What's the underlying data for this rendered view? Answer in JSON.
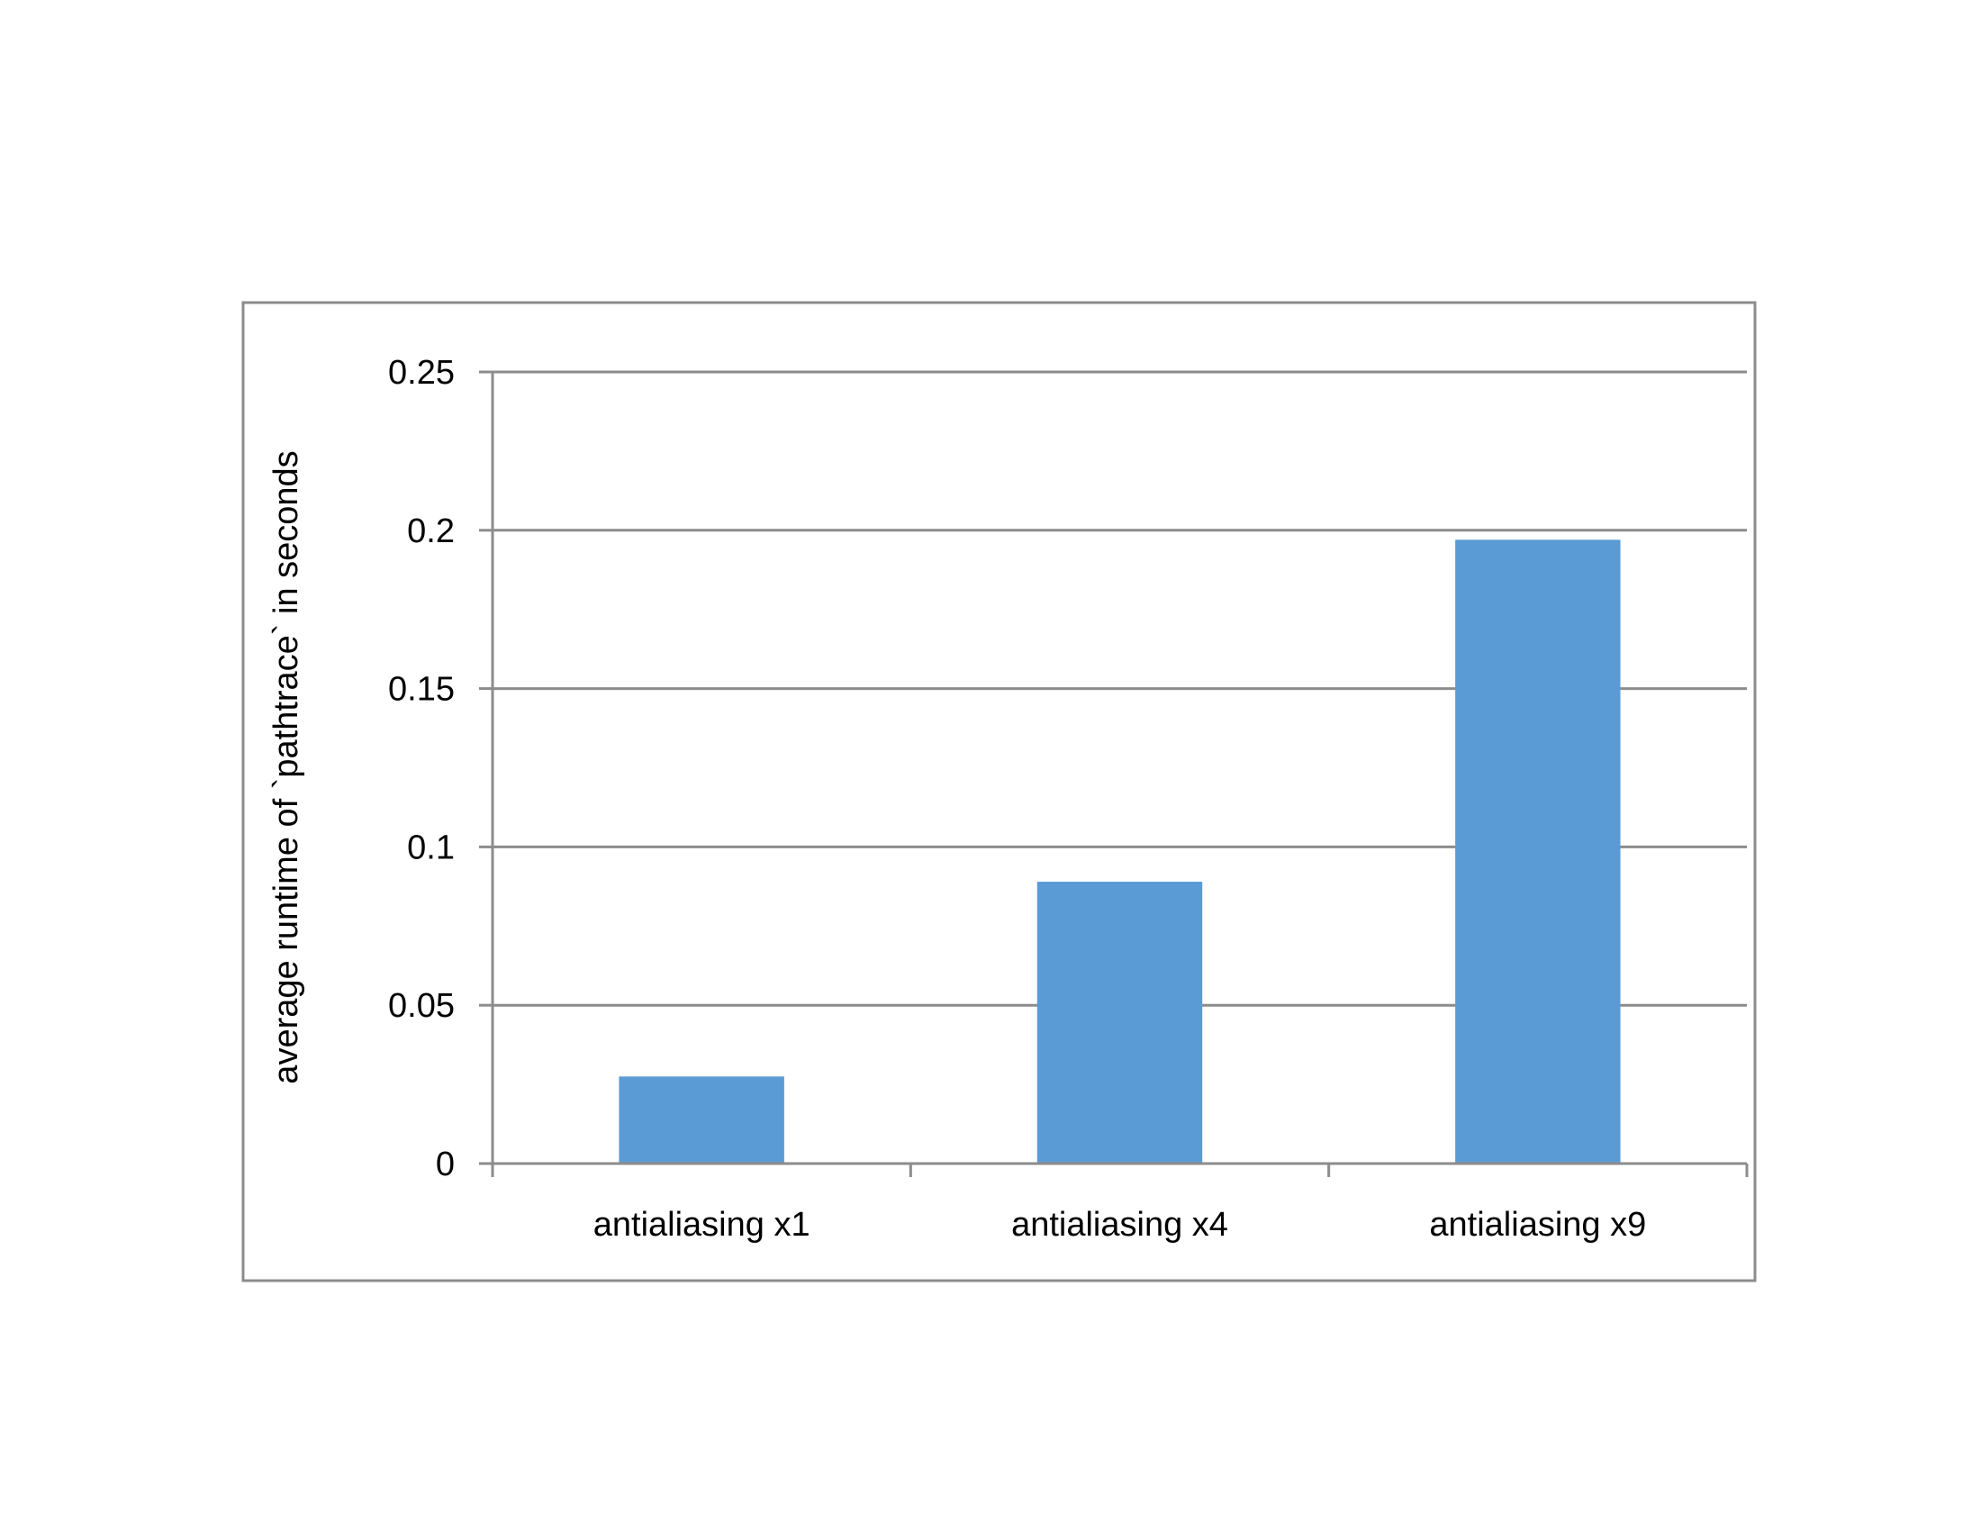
{
  "chart_data": {
    "type": "bar",
    "categories": [
      "antialiasing x1",
      "antialiasing x4",
      "antialiasing x9"
    ],
    "values": [
      0.0275,
      0.089,
      0.197
    ],
    "title": "",
    "xlabel": "",
    "ylabel": "average runtime of `pathtrace` in seconds",
    "ylim": [
      0,
      0.25
    ],
    "yticks": [
      "0",
      "0.05",
      "0.1",
      "0.15",
      "0.2",
      "0.25"
    ],
    "grid": true,
    "legend": "none",
    "colors": {
      "bar": "#5b9bd5",
      "grid": "#8c8c8c",
      "frame": "#8c8c8c"
    }
  }
}
